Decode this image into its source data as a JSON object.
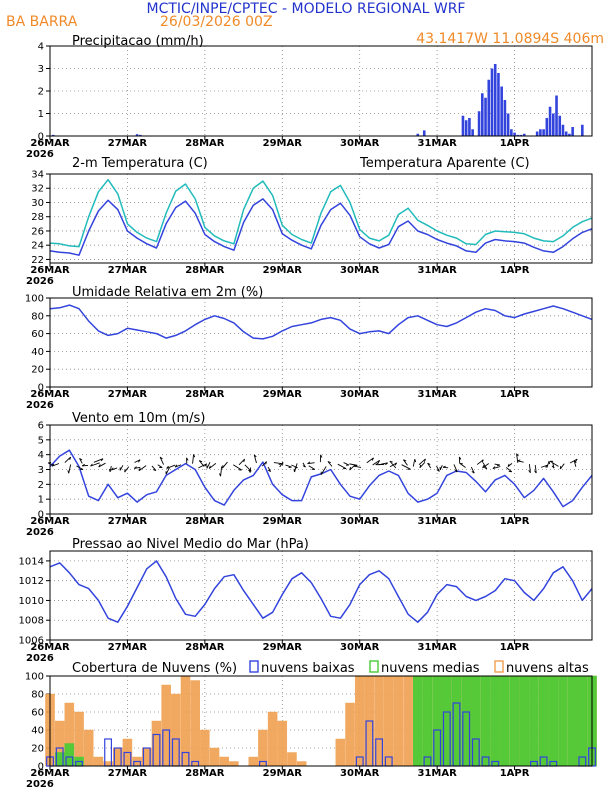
{
  "header": {
    "title": "MCTIC/INPE/CPTEC - MODELO REGIONAL WRF",
    "station": "BA BARRA",
    "run": "26/03/2026 00Z",
    "location": "43.1417W 11.0894S 406m",
    "title_color": "#2233cc",
    "info_color": "#f08a28"
  },
  "x_axis": {
    "day_labels": [
      "26MAR",
      "27MAR",
      "28MAR",
      "29MAR",
      "30MAR",
      "31MAR",
      "1APR"
    ],
    "year_label": "2026",
    "hours_total": 168
  },
  "panels": {
    "precip": {
      "title": "Precipitacao (mm/h)"
    },
    "temp": {
      "title": "2-m Temperatura (C)",
      "legend_apparent": "Temperatura Aparente (C)"
    },
    "rh": {
      "title": "Umidade Relativa em 2m (%)"
    },
    "wind": {
      "title": "Vento em 10m (m/s)"
    },
    "pressure": {
      "title": "Pressao ao Nivel Medio do Mar (hPa)"
    },
    "clouds": {
      "title": "Cobertura de Nuvens (%)",
      "legend_low": "nuvens baixas",
      "legend_mid": "nuvens medias",
      "legend_high": "nuvens altas"
    }
  },
  "colors": {
    "blue": "#3344dd",
    "cyan": "#22bbbb",
    "green": "#44cc33",
    "orange": "#f0a050",
    "grid": "#888888"
  },
  "chart_data": [
    {
      "id": "precip",
      "type": "bar",
      "title": "Precipitacao (mm/h)",
      "ylim": [
        0,
        4
      ],
      "yticks": [
        0,
        1,
        2,
        3,
        4
      ],
      "series": [
        {
          "name": "Precipitacao",
          "x_hours": [
            1,
            27,
            28,
            114,
            116,
            128,
            129,
            130,
            131,
            133,
            134,
            135,
            136,
            137,
            138,
            139,
            140,
            141,
            142,
            143,
            144,
            145,
            146,
            147,
            151,
            152,
            153,
            154,
            155,
            156,
            157,
            158,
            159,
            160,
            161,
            162,
            165
          ],
          "values": [
            0.05,
            0.08,
            0.05,
            0.1,
            0.25,
            0.9,
            0.7,
            0.8,
            0.3,
            1.1,
            1.9,
            1.7,
            2.5,
            3.0,
            3.2,
            2.8,
            2.2,
            1.6,
            1.0,
            0.3,
            0.15,
            0.05,
            0.05,
            0.1,
            0.2,
            0.3,
            0.3,
            0.8,
            1.3,
            1.0,
            1.8,
            0.9,
            0.5,
            0.2,
            0.1,
            0.4,
            0.5
          ]
        }
      ]
    },
    {
      "id": "temp",
      "type": "line",
      "title": "2-m Temperatura (C)",
      "ylim": [
        21.5,
        34
      ],
      "yticks": [
        22,
        24,
        26,
        28,
        30,
        32,
        34
      ],
      "x_hours": [
        0,
        3,
        6,
        9,
        12,
        15,
        18,
        21,
        24,
        27,
        30,
        33,
        36,
        39,
        42,
        45,
        48,
        51,
        54,
        57,
        60,
        63,
        66,
        69,
        72,
        75,
        78,
        81,
        84,
        87,
        90,
        93,
        96,
        99,
        102,
        105,
        108,
        111,
        114,
        117,
        120,
        123,
        126,
        129,
        132,
        135,
        138,
        141,
        144,
        147,
        150,
        153,
        156,
        159,
        162,
        165,
        168
      ],
      "series": [
        {
          "name": "2-m Temperatura",
          "color": "#3344dd",
          "values": [
            23.2,
            23.0,
            22.9,
            22.6,
            26.0,
            28.8,
            30.3,
            29.0,
            26.0,
            25.0,
            24.2,
            23.6,
            27.0,
            29.3,
            30.2,
            28.5,
            25.5,
            24.5,
            23.8,
            23.3,
            27.2,
            29.6,
            30.5,
            29.0,
            25.6,
            24.7,
            24.0,
            23.5,
            26.8,
            29.0,
            29.9,
            28.2,
            25.2,
            24.2,
            23.6,
            24.1,
            26.6,
            27.4,
            26.0,
            25.5,
            24.8,
            24.3,
            23.9,
            23.2,
            23.0,
            24.3,
            24.8,
            24.6,
            24.5,
            24.3,
            23.7,
            23.2,
            23.0,
            23.8,
            24.9,
            25.8,
            26.3
          ]
        },
        {
          "name": "Temperatura Aparente (C)",
          "color": "#22bbbb",
          "values": [
            24.3,
            24.2,
            23.9,
            23.8,
            28.0,
            31.5,
            33.2,
            31.2,
            27.0,
            25.8,
            25.0,
            24.5,
            28.5,
            31.6,
            32.6,
            30.5,
            26.5,
            25.3,
            24.6,
            24.2,
            29.0,
            32.0,
            33.0,
            31.0,
            26.8,
            25.5,
            24.8,
            24.3,
            28.5,
            31.5,
            32.4,
            30.0,
            26.2,
            25.0,
            24.6,
            25.4,
            28.3,
            29.2,
            27.5,
            26.8,
            26.0,
            25.4,
            25.0,
            24.2,
            24.1,
            25.5,
            26.0,
            25.9,
            25.8,
            25.6,
            25.0,
            24.6,
            24.5,
            25.3,
            26.5,
            27.3,
            27.8
          ]
        }
      ]
    },
    {
      "id": "rh",
      "type": "line",
      "title": "Umidade Relativa em 2m (%)",
      "ylim": [
        0,
        100
      ],
      "yticks": [
        0,
        20,
        40,
        60,
        80,
        100
      ],
      "x_hours": [
        0,
        3,
        6,
        9,
        12,
        15,
        18,
        21,
        24,
        27,
        30,
        33,
        36,
        39,
        42,
        45,
        48,
        51,
        54,
        57,
        60,
        63,
        66,
        69,
        72,
        75,
        78,
        81,
        84,
        87,
        90,
        93,
        96,
        99,
        102,
        105,
        108,
        111,
        114,
        117,
        120,
        123,
        126,
        129,
        132,
        135,
        138,
        141,
        144,
        147,
        150,
        153,
        156,
        159,
        162,
        165,
        168
      ],
      "series": [
        {
          "name": "Umidade Relativa",
          "color": "#3344dd",
          "values": [
            88,
            89,
            92,
            88,
            74,
            63,
            58,
            60,
            66,
            64,
            62,
            60,
            55,
            58,
            63,
            70,
            76,
            80,
            77,
            72,
            62,
            55,
            54,
            57,
            63,
            68,
            70,
            72,
            76,
            78,
            75,
            65,
            60,
            62,
            63,
            60,
            70,
            78,
            80,
            75,
            70,
            68,
            72,
            78,
            84,
            88,
            86,
            80,
            78,
            82,
            85,
            88,
            91,
            88,
            84,
            80,
            76
          ]
        }
      ]
    },
    {
      "id": "wind",
      "type": "line",
      "title": "Vento em 10m (m/s)",
      "ylim": [
        0,
        6
      ],
      "yticks": [
        0,
        1,
        2,
        3,
        4,
        5,
        6
      ],
      "x_hours": [
        0,
        3,
        6,
        9,
        12,
        15,
        18,
        21,
        24,
        27,
        30,
        33,
        36,
        39,
        42,
        45,
        48,
        51,
        54,
        57,
        60,
        63,
        66,
        69,
        72,
        75,
        78,
        81,
        84,
        87,
        90,
        93,
        96,
        99,
        102,
        105,
        108,
        111,
        114,
        117,
        120,
        123,
        126,
        129,
        132,
        135,
        138,
        141,
        144,
        147,
        150,
        153,
        156,
        159,
        162,
        165,
        168
      ],
      "series": [
        {
          "name": "Vento",
          "color": "#3344dd",
          "values": [
            3.2,
            3.9,
            4.3,
            3.2,
            1.2,
            0.9,
            2.0,
            1.1,
            1.4,
            0.8,
            1.3,
            1.5,
            2.6,
            3.0,
            3.4,
            3.0,
            1.8,
            0.9,
            0.6,
            1.6,
            2.3,
            2.6,
            3.5,
            2.0,
            1.3,
            0.9,
            0.9,
            2.5,
            2.7,
            3.0,
            2.0,
            1.2,
            1.0,
            1.9,
            2.6,
            2.9,
            2.6,
            1.4,
            0.8,
            1.0,
            1.4,
            2.6,
            2.9,
            2.8,
            2.2,
            1.5,
            2.3,
            2.6,
            2.0,
            1.1,
            1.6,
            2.4,
            1.5,
            0.5,
            0.9,
            1.8,
            2.6
          ]
        }
      ],
      "barbs": "wind direction arrows"
    },
    {
      "id": "pressure",
      "type": "line",
      "title": "Pressao ao Nivel Medio do Mar (hPa)",
      "ylim": [
        1006,
        1015
      ],
      "yticks": [
        1006,
        1008,
        1010,
        1012,
        1014
      ],
      "x_hours": [
        0,
        3,
        6,
        9,
        12,
        15,
        18,
        21,
        24,
        27,
        30,
        33,
        36,
        39,
        42,
        45,
        48,
        51,
        54,
        57,
        60,
        63,
        66,
        69,
        72,
        75,
        78,
        81,
        84,
        87,
        90,
        93,
        96,
        99,
        102,
        105,
        108,
        111,
        114,
        117,
        120,
        123,
        126,
        129,
        132,
        135,
        138,
        141,
        144,
        147,
        150,
        153,
        156,
        159,
        162,
        165,
        168
      ],
      "series": [
        {
          "name": "Pressao",
          "color": "#3344dd",
          "values": [
            1013.4,
            1013.8,
            1012.8,
            1011.6,
            1011.2,
            1010.0,
            1008.2,
            1007.8,
            1009.4,
            1011.3,
            1013.2,
            1014.0,
            1012.4,
            1010.2,
            1008.6,
            1008.4,
            1009.6,
            1011.2,
            1012.4,
            1012.6,
            1011.0,
            1009.6,
            1008.2,
            1008.8,
            1010.6,
            1012.2,
            1012.8,
            1011.8,
            1010.2,
            1008.4,
            1008.2,
            1009.6,
            1011.6,
            1012.6,
            1013.0,
            1012.2,
            1010.4,
            1008.6,
            1007.8,
            1008.8,
            1010.6,
            1011.6,
            1011.4,
            1010.4,
            1010.0,
            1010.4,
            1011.0,
            1012.2,
            1012.0,
            1010.8,
            1010.0,
            1011.2,
            1012.8,
            1013.4,
            1012.0,
            1010.0,
            1011.2
          ]
        }
      ]
    },
    {
      "id": "clouds",
      "type": "bar",
      "title": "Cobertura de Nuvens (%)",
      "ylim": [
        0,
        100
      ],
      "yticks": [
        0,
        20,
        40,
        60,
        80,
        100
      ],
      "x_hours": [
        0,
        3,
        6,
        9,
        12,
        15,
        18,
        21,
        24,
        27,
        30,
        33,
        36,
        39,
        42,
        45,
        48,
        51,
        54,
        57,
        60,
        63,
        66,
        69,
        72,
        75,
        78,
        81,
        84,
        87,
        90,
        93,
        96,
        99,
        102,
        105,
        108,
        111,
        114,
        117,
        120,
        123,
        126,
        129,
        132,
        135,
        138,
        141,
        144,
        147,
        150,
        153,
        156,
        159,
        162,
        165,
        168
      ],
      "series": [
        {
          "name": "nuvens altas",
          "color": "#f0a050",
          "values": [
            80,
            50,
            70,
            60,
            40,
            10,
            5,
            20,
            30,
            10,
            20,
            50,
            90,
            80,
            100,
            95,
            40,
            20,
            10,
            5,
            0,
            10,
            40,
            60,
            50,
            15,
            5,
            0,
            0,
            0,
            30,
            70,
            100,
            100,
            100,
            100,
            100,
            100,
            100,
            100,
            100,
            100,
            100,
            100,
            100,
            100,
            100,
            100,
            100,
            100,
            100,
            100,
            100,
            100,
            100,
            100,
            100
          ]
        },
        {
          "name": "nuvens medias",
          "color": "#44cc33",
          "values": [
            0,
            15,
            25,
            10,
            0,
            0,
            0,
            0,
            0,
            0,
            0,
            0,
            0,
            0,
            0,
            0,
            0,
            0,
            0,
            0,
            0,
            0,
            0,
            0,
            0,
            0,
            0,
            0,
            0,
            0,
            0,
            0,
            0,
            0,
            0,
            0,
            0,
            0,
            100,
            100,
            100,
            100,
            100,
            100,
            100,
            100,
            100,
            100,
            100,
            100,
            100,
            100,
            100,
            100,
            100,
            100,
            100
          ]
        },
        {
          "name": "nuvens baixas",
          "color": "#3344dd",
          "values": [
            10,
            20,
            10,
            5,
            0,
            0,
            30,
            20,
            15,
            5,
            20,
            35,
            40,
            30,
            15,
            5,
            0,
            0,
            0,
            0,
            0,
            0,
            5,
            0,
            0,
            0,
            0,
            0,
            0,
            0,
            0,
            0,
            10,
            50,
            30,
            10,
            0,
            0,
            0,
            10,
            40,
            60,
            70,
            60,
            30,
            10,
            5,
            0,
            0,
            0,
            5,
            10,
            5,
            0,
            0,
            10,
            20
          ]
        }
      ]
    }
  ]
}
